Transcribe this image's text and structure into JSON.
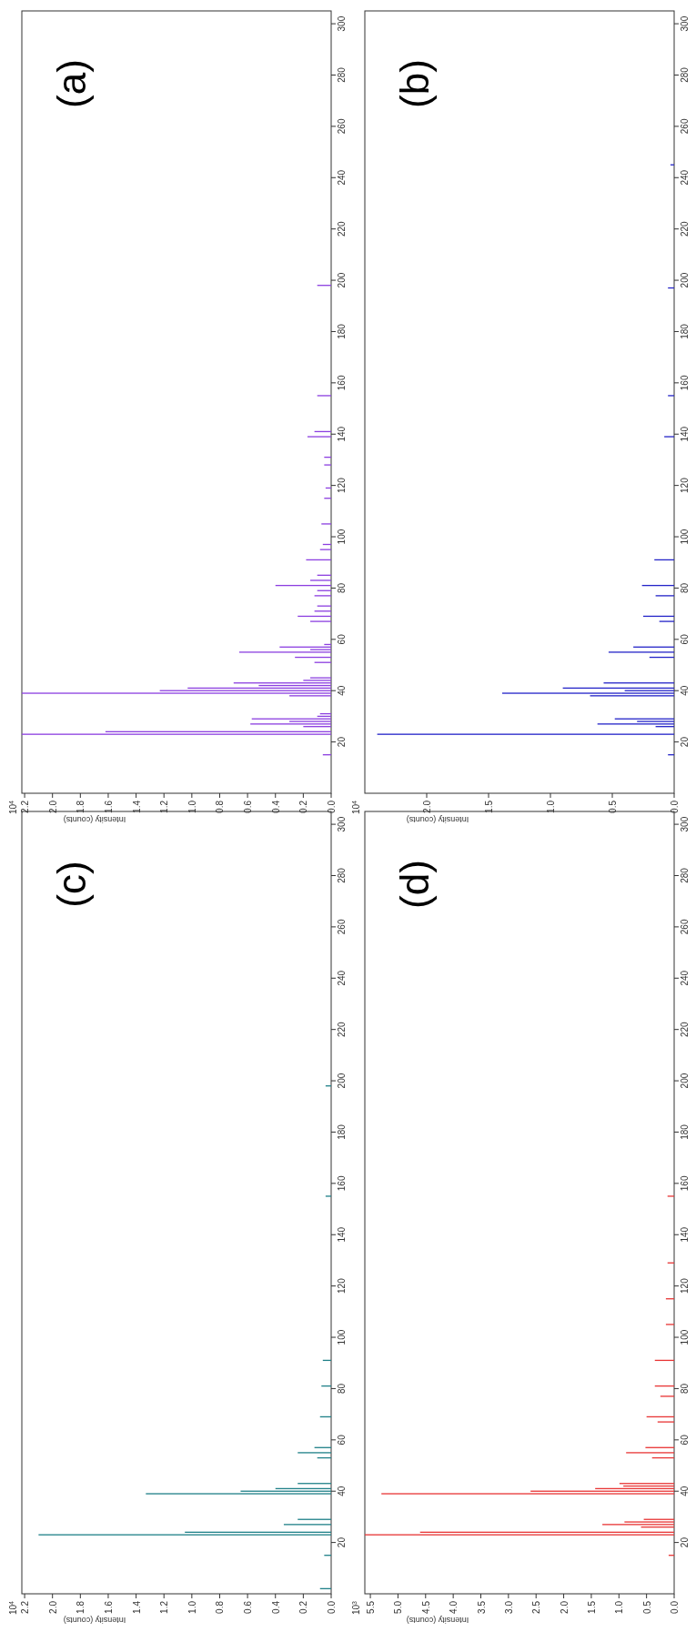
{
  "chart_data": [
    {
      "type": "bar",
      "orientation": "horizontal",
      "title": "(a)",
      "xlabel": "Intensity (counts)",
      "annotations": [
        "10$^{4}$"
      ],
      "color": "#8c3fe0",
      "x": [
        15,
        23,
        24,
        26,
        27,
        28,
        29,
        30,
        31,
        38,
        39,
        40,
        41,
        42,
        43,
        44,
        45,
        51,
        53,
        55,
        56,
        57,
        58,
        67,
        69,
        71,
        73,
        77,
        79,
        81,
        83,
        85,
        91,
        95,
        97,
        105,
        115,
        119,
        128,
        131,
        139,
        141,
        155,
        198
      ],
      "values": [
        0.06,
        2.22,
        1.62,
        0.2,
        0.58,
        0.3,
        0.57,
        0.1,
        0.08,
        0.3,
        2.22,
        1.23,
        1.03,
        0.52,
        0.7,
        0.2,
        0.15,
        0.12,
        0.26,
        0.66,
        0.15,
        0.37,
        0.05,
        0.15,
        0.24,
        0.12,
        0.1,
        0.12,
        0.1,
        0.4,
        0.15,
        0.1,
        0.18,
        0.08,
        0.06,
        0.07,
        0.05,
        0.04,
        0.05,
        0.05,
        0.17,
        0.12,
        0.1,
        0.1
      ],
      "ylim": [
        0,
        305
      ],
      "yticks": [
        20,
        40,
        60,
        80,
        100,
        120,
        140,
        160,
        180,
        200,
        220,
        240,
        260,
        280,
        300
      ],
      "xlim": [
        2.22,
        0
      ],
      "xticks": [
        {
          "value": 0,
          "label": "0.0"
        },
        0.2,
        0.4,
        0.6,
        0.8,
        {
          "value": 1,
          "label": "1.0"
        },
        1.2,
        1.4,
        1.6,
        1.8,
        {
          "value": 2,
          "label": "2.0"
        },
        2.2
      ]
    },
    {
      "type": "bar",
      "orientation": "horizontal",
      "title": "(b)",
      "xlabel": "Intensity (counts)",
      "annotations": [
        "10$^{4}$"
      ],
      "color": "#2424c8",
      "x": [
        15,
        23,
        26,
        27,
        28,
        29,
        38,
        39,
        40,
        41,
        43,
        53,
        55,
        57,
        67,
        69,
        77,
        81,
        91,
        139,
        155,
        197,
        245
      ],
      "values": [
        0.05,
        2.4,
        0.15,
        0.62,
        0.3,
        0.48,
        0.68,
        1.39,
        0.4,
        0.9,
        0.57,
        0.2,
        0.53,
        0.33,
        0.12,
        0.25,
        0.15,
        0.26,
        0.16,
        0.08,
        0.05,
        0.05,
        0.03
      ],
      "ylim": [
        0,
        305
      ],
      "yticks": [
        20,
        40,
        60,
        80,
        100,
        120,
        140,
        160,
        180,
        200,
        220,
        240,
        260,
        280,
        300
      ],
      "xlim": [
        2.5,
        0
      ],
      "xticks": [
        {
          "value": 0,
          "label": "0.0"
        },
        0.5,
        {
          "value": 1,
          "label": "1.0"
        },
        1.5,
        {
          "value": 2,
          "label": "2.0"
        }
      ]
    },
    {
      "type": "bar",
      "orientation": "horizontal",
      "title": "(c)",
      "xlabel": "Intensity (counts)",
      "annotations": [
        "10$^{4}$"
      ],
      "color": "#1f8088",
      "x": [
        2,
        15,
        23,
        24,
        27,
        29,
        39,
        40,
        41,
        43,
        53,
        55,
        57,
        69,
        81,
        91,
        155,
        198
      ],
      "values": [
        0.08,
        0.05,
        2.1,
        1.05,
        0.34,
        0.24,
        1.33,
        0.65,
        0.4,
        0.24,
        0.1,
        0.24,
        0.12,
        0.08,
        0.07,
        0.06,
        0.04,
        0.04
      ],
      "ylim": [
        0,
        305
      ],
      "yticks": [
        20,
        40,
        60,
        80,
        100,
        120,
        140,
        160,
        180,
        200,
        220,
        240,
        260,
        280,
        300
      ],
      "xlim": [
        2.22,
        0
      ],
      "xticks": [
        {
          "value": 0,
          "label": "0.0"
        },
        0.2,
        0.4,
        0.6,
        0.8,
        {
          "value": 1,
          "label": "1.0"
        },
        1.2,
        1.4,
        1.6,
        1.8,
        {
          "value": 2,
          "label": "2.0"
        },
        2.2
      ]
    },
    {
      "type": "bar",
      "orientation": "horizontal",
      "title": "(d)",
      "xlabel": "Intensity (counts)",
      "annotations": [
        "10$^{3}$"
      ],
      "color": "#e83535",
      "x": [
        15,
        23,
        24,
        26,
        27,
        28,
        29,
        39,
        40,
        41,
        42,
        43,
        53,
        55,
        57,
        67,
        69,
        77,
        81,
        91,
        105,
        115,
        129,
        155
      ],
      "values": [
        0.1,
        5.6,
        4.6,
        0.6,
        1.3,
        0.9,
        0.55,
        5.3,
        2.6,
        1.43,
        0.92,
        0.99,
        0.4,
        0.87,
        0.52,
        0.3,
        0.5,
        0.25,
        0.35,
        0.35,
        0.15,
        0.15,
        0.12,
        0.12
      ],
      "ylim": [
        0,
        305
      ],
      "yticks": [
        20,
        40,
        60,
        80,
        100,
        120,
        140,
        160,
        180,
        200,
        220,
        240,
        260,
        280,
        300
      ],
      "xlim": [
        5.6,
        0
      ],
      "xticks": [
        {
          "value": 0,
          "label": "0.0"
        },
        0.5,
        {
          "value": 1,
          "label": "1.0"
        },
        1.5,
        {
          "value": 2,
          "label": "2.0"
        },
        2.5,
        {
          "value": 3,
          "label": "3.0"
        },
        3.5,
        {
          "value": 4,
          "label": "4.0"
        },
        4.5,
        {
          "value": 5,
          "label": "5.0"
        },
        5.5
      ]
    }
  ]
}
